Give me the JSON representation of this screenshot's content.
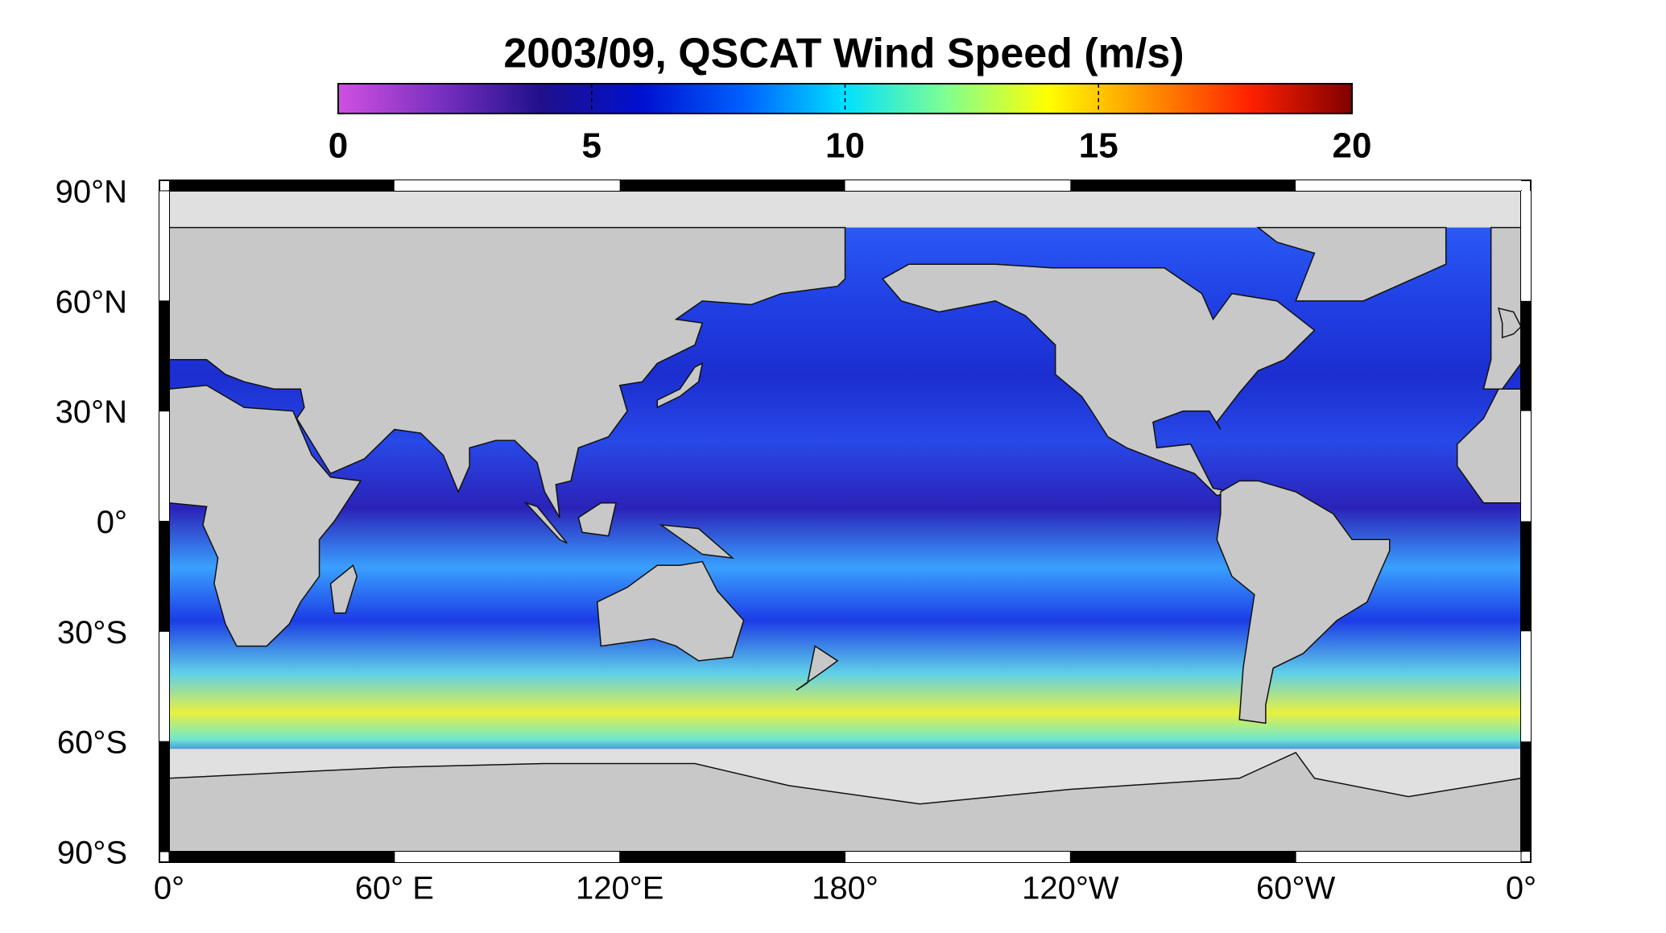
{
  "map": {
    "title": "2003/09,  QSCAT Wind Speed (m/s)",
    "colorbar": {
      "lim": [
        0,
        20
      ],
      "ticks": [
        0,
        5,
        10,
        15,
        20
      ],
      "colors": [
        "#d050e0",
        "#7a30c0",
        "#20108a",
        "#0010d0",
        "#0060ff",
        "#00e0ff",
        "#80ff90",
        "#ffff00",
        "#ff9000",
        "#ff2000",
        "#800000"
      ]
    },
    "lat_ticks": [
      {
        "value": 90,
        "label": "90°N"
      },
      {
        "value": 60,
        "label": "60°N"
      },
      {
        "value": 30,
        "label": "30°N"
      },
      {
        "value": 0,
        "label": "0°"
      },
      {
        "value": -30,
        "label": "30°S"
      },
      {
        "value": -60,
        "label": "60°S"
      },
      {
        "value": -90,
        "label": "90°S"
      }
    ],
    "lon_ticks": [
      {
        "value": 0,
        "label": "0°"
      },
      {
        "value": 60,
        "label": "60° E"
      },
      {
        "value": 120,
        "label": "120°E"
      },
      {
        "value": 180,
        "label": "180°"
      },
      {
        "value": 240,
        "label": "120°W"
      },
      {
        "value": 300,
        "label": "60°W"
      },
      {
        "value": 360,
        "label": "0°"
      }
    ]
  }
}
